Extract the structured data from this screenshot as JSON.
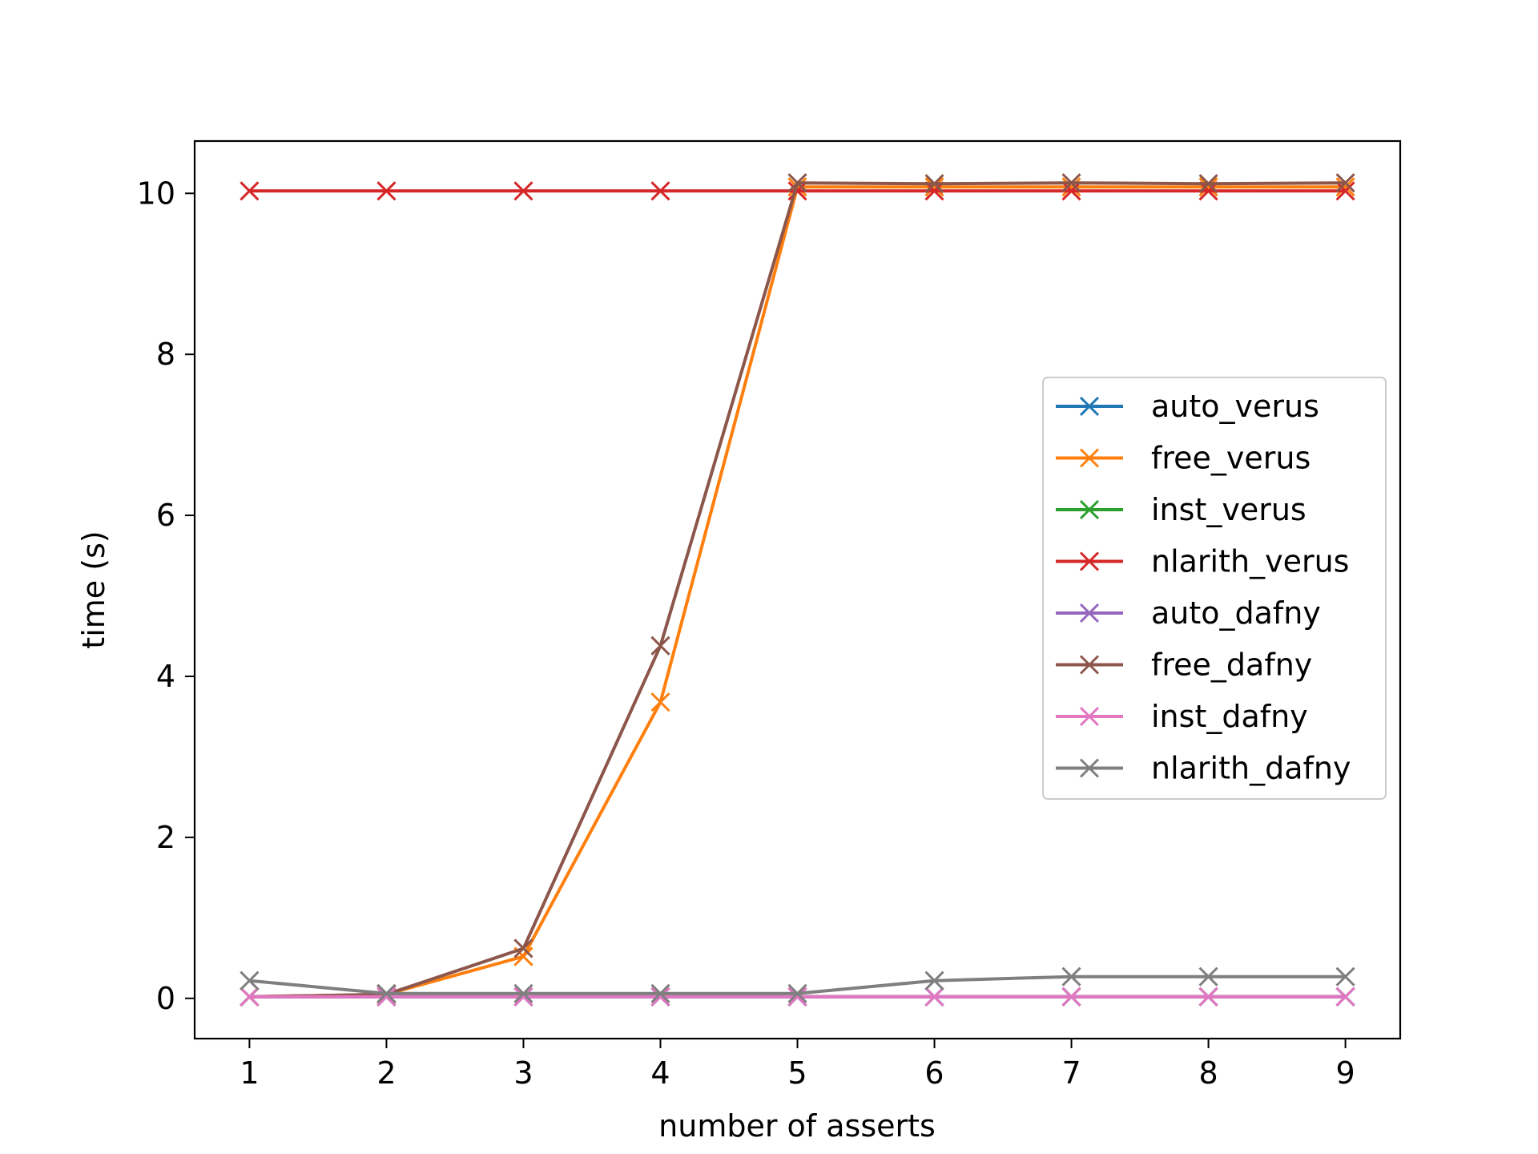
{
  "chart_data": {
    "type": "line",
    "title": "",
    "xlabel": "number of asserts",
    "ylabel": "time (s)",
    "x": [
      1,
      2,
      3,
      4,
      5,
      6,
      7,
      8,
      9
    ],
    "xticks": [
      "1",
      "2",
      "3",
      "4",
      "5",
      "6",
      "7",
      "8",
      "9"
    ],
    "yticks": [
      "0",
      "2",
      "4",
      "6",
      "8",
      "10"
    ],
    "xlim": [
      0.6,
      9.4
    ],
    "ylim": [
      -0.5,
      10.65
    ],
    "grid": false,
    "legend_position": "center-right",
    "marker": "x",
    "series": [
      {
        "name": "auto_verus",
        "color": "#1f77b4",
        "values": [
          0.02,
          0.02,
          0.02,
          0.02,
          0.02,
          0.02,
          0.02,
          0.02,
          0.02
        ]
      },
      {
        "name": "free_verus",
        "color": "#ff7f0e",
        "values": [
          0.02,
          0.05,
          0.52,
          3.68,
          10.08,
          10.08,
          10.08,
          10.08,
          10.08
        ]
      },
      {
        "name": "inst_verus",
        "color": "#2ca02c",
        "values": [
          0.02,
          0.02,
          0.02,
          0.02,
          0.02,
          0.02,
          0.02,
          0.02,
          0.02
        ]
      },
      {
        "name": "nlarith_verus",
        "color": "#d62728",
        "values": [
          10.03,
          10.03,
          10.03,
          10.03,
          10.03,
          10.03,
          10.03,
          10.03,
          10.03
        ]
      },
      {
        "name": "auto_dafny",
        "color": "#9467bd",
        "values": [
          0.02,
          0.02,
          0.02,
          0.02,
          0.02,
          0.02,
          0.02,
          0.02,
          0.02
        ]
      },
      {
        "name": "free_dafny",
        "color": "#8c564b",
        "values": [
          0.02,
          0.05,
          0.62,
          4.38,
          10.13,
          10.12,
          10.13,
          10.12,
          10.13
        ]
      },
      {
        "name": "inst_dafny",
        "color": "#e377c2",
        "values": [
          0.02,
          0.02,
          0.02,
          0.02,
          0.02,
          0.02,
          0.02,
          0.02,
          0.02
        ]
      },
      {
        "name": "nlarith_dafny",
        "color": "#7f7f7f",
        "values": [
          0.22,
          0.06,
          0.06,
          0.06,
          0.06,
          0.22,
          0.27,
          0.27,
          0.27
        ]
      }
    ]
  }
}
